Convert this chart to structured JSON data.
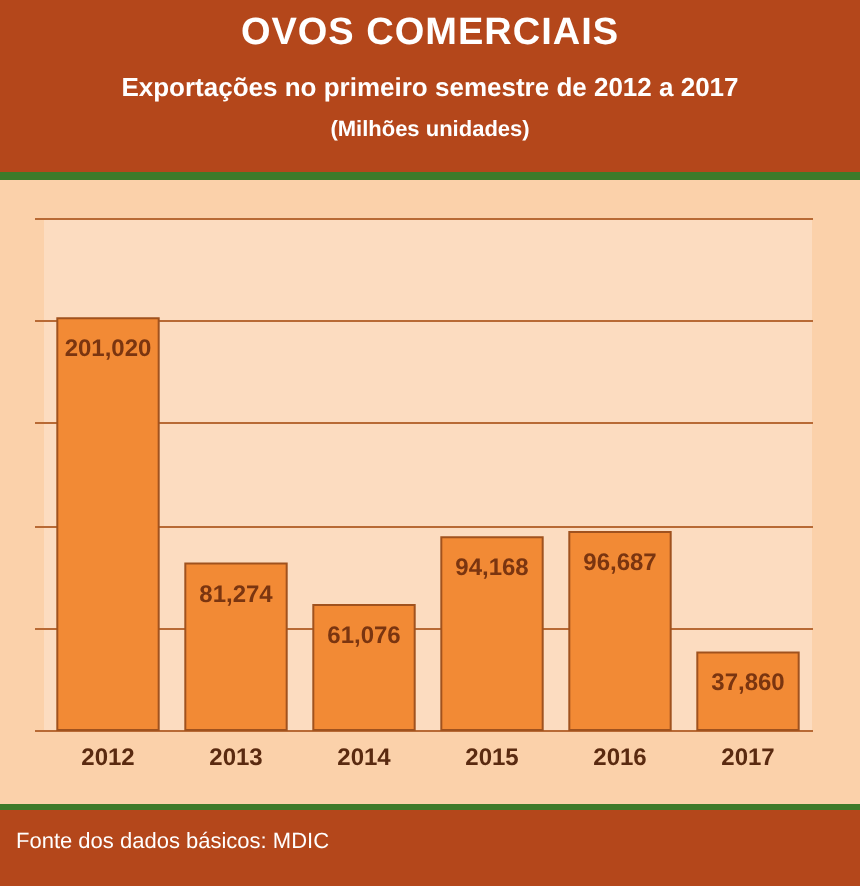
{
  "chart_data": {
    "type": "bar",
    "title": "OVOS COMERCIAIS",
    "subtitle": "Exportações no primeiro semestre de 2012 a 2017",
    "annotations": [
      "(Milhões unidades)",
      "Fonte dos dados básicos: MDIC"
    ],
    "categories": [
      "2012",
      "2013",
      "2014",
      "2015",
      "2016",
      "2017"
    ],
    "values": [
      201020,
      81274,
      61076,
      94168,
      96687,
      37860
    ],
    "value_labels": [
      "201,020",
      "81,274",
      "61,076",
      "94,168",
      "96,687",
      "37,860"
    ],
    "color": "#f28a35",
    "ylim": [
      0,
      250000
    ],
    "yticks": [
      {
        "value": 0,
        "label": null
      },
      {
        "value": 50000,
        "label": null
      },
      {
        "value": 100000,
        "label": null
      },
      {
        "value": 150000,
        "label": null
      },
      {
        "value": 200000,
        "label": null
      },
      {
        "value": 250000,
        "label": null
      }
    ],
    "tick_labels": "x",
    "grid": "y"
  }
}
